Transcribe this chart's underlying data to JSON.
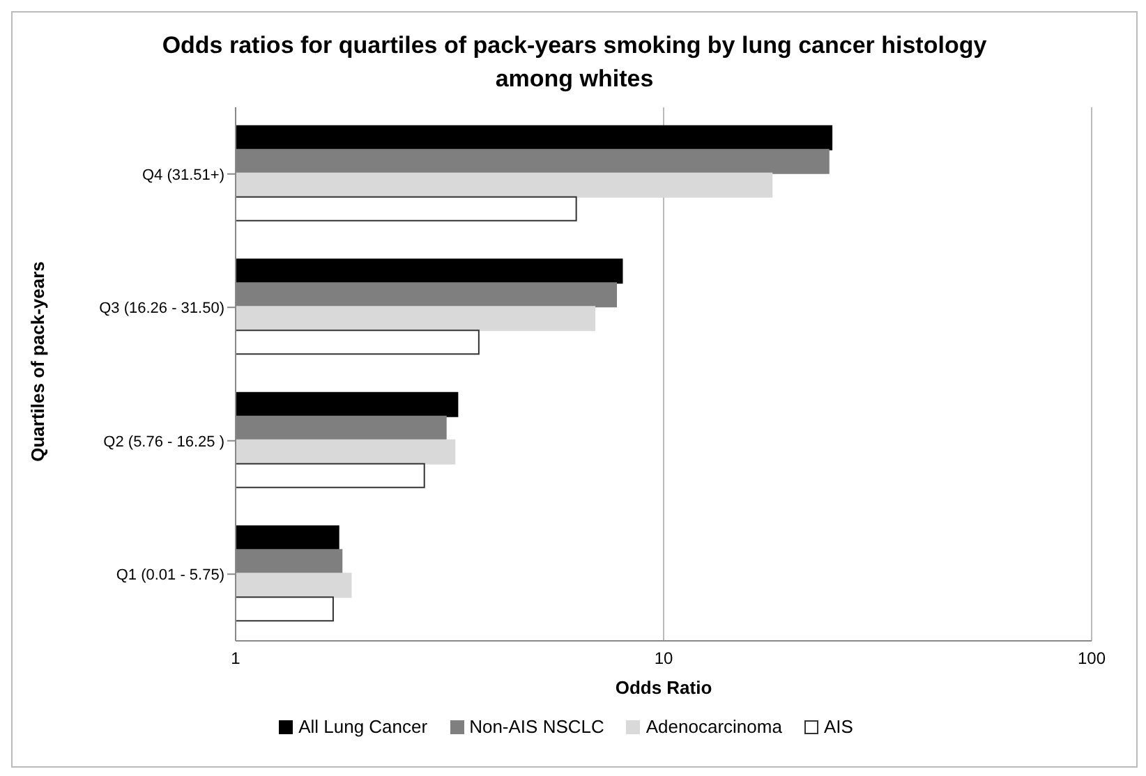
{
  "chart_data": {
    "type": "bar",
    "orientation": "horizontal",
    "title": "Odds ratios for quartiles of pack-years smoking by lung cancer histology among whites",
    "xlabel": "Odds Ratio",
    "ylabel": "Quartiles of pack-years",
    "categories": [
      "Q4  (31.51+)",
      "Q3  (16.26 - 31.50)",
      "Q2  (5.76 - 16.25 )",
      "Q1 (0.01 - 5.75)"
    ],
    "series": [
      {
        "name": "All Lung Cancer",
        "color": "#000000",
        "values": [
          24.7,
          8.0,
          3.3,
          1.74
        ]
      },
      {
        "name": "Non-AIS NSCLC",
        "color": "#7f7f7f",
        "values": [
          24.3,
          7.75,
          3.1,
          1.77
        ]
      },
      {
        "name": "Adenocarcinoma",
        "color": "#d9d9d9",
        "values": [
          17.9,
          6.9,
          3.25,
          1.86
        ]
      },
      {
        "name": "AIS",
        "color": "#ffffff",
        "values": [
          6.25,
          3.7,
          2.76,
          1.69
        ]
      }
    ],
    "log": "x",
    "xlim": [
      1,
      100
    ],
    "xticks": [
      1,
      10,
      100
    ],
    "grid": "x",
    "legend": "bottom"
  }
}
